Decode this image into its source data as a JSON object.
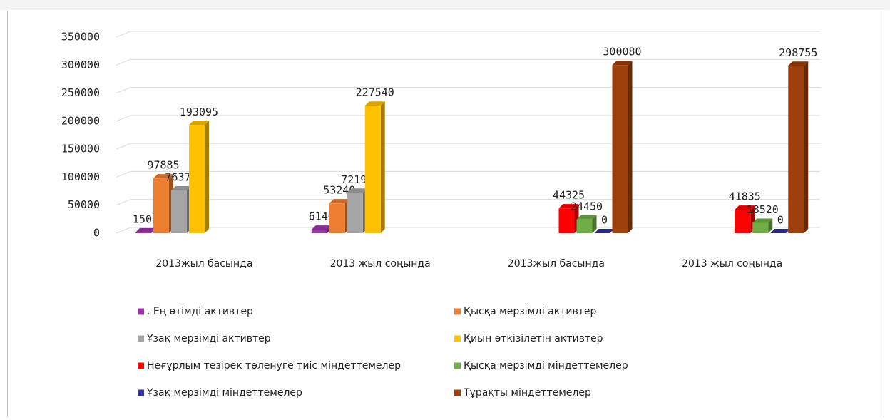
{
  "chart_data": {
    "type": "bar3d",
    "categories": [
      "2013жыл басында",
      "2013 жыл соңында",
      "2013жыл басында",
      "2013 жыл соңында"
    ],
    "series": [
      {
        "name": ". Ең өтімді активтер",
        "color": "#9b35a8",
        "values": [
          1505,
          6140,
          null,
          null
        ]
      },
      {
        "name": "Қысқа мерзімді активтер",
        "color": "#ed7d31",
        "values": [
          97885,
          53240,
          null,
          null
        ]
      },
      {
        "name": "Ұзақ мерзімді активтер",
        "color": "#a5a5a5",
        "values": [
          76370,
          72190,
          null,
          null
        ]
      },
      {
        "name": "Қиын өткізілетін активтер",
        "color": "#ffc000",
        "values": [
          193095,
          227540,
          null,
          null
        ]
      },
      {
        "name": "Неғұрлым тезірек төленуге тиіс міндеттемелер",
        "color": "#ff0000",
        "values": [
          null,
          null,
          44325,
          41835
        ]
      },
      {
        "name": "Қысқа мерзімді міндеттемелер",
        "color": "#70ad47",
        "values": [
          null,
          null,
          24450,
          18520
        ]
      },
      {
        "name": "Ұзақ мерзімді міндеттемелер",
        "color": "#333399",
        "values": [
          null,
          null,
          0,
          0
        ]
      },
      {
        "name": "Тұрақты міндеттемелер",
        "color": "#9c3f0a",
        "values": [
          null,
          null,
          300080,
          298755
        ]
      }
    ],
    "ylim": [
      0,
      350000
    ],
    "yticks": [
      0,
      50000,
      100000,
      150000,
      200000,
      250000,
      300000,
      350000
    ],
    "grid": true,
    "legend": "bottom"
  }
}
